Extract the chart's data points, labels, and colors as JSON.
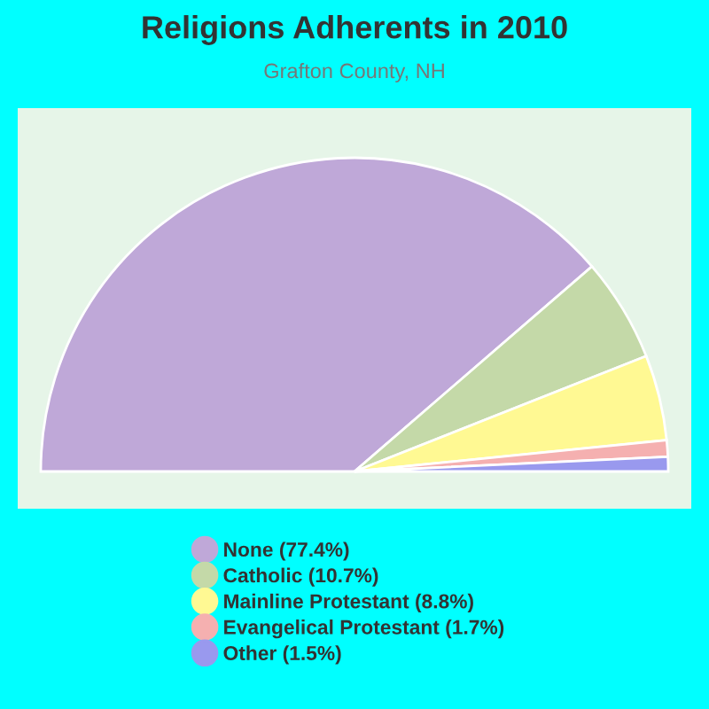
{
  "chart_data": {
    "type": "pie",
    "title": "Religions Adherents in 2010",
    "subtitle": "Grafton County, NH",
    "categories": [
      "None (77.4%)",
      "Catholic (10.7%)",
      "Mainline Protestant (8.8%)",
      "Evangelical Protestant (1.7%)",
      "Other (1.5%)"
    ],
    "values": [
      77.4,
      10.7,
      8.8,
      1.7,
      1.5
    ],
    "colors": [
      "#bfa8d8",
      "#c4d9a8",
      "#fff993",
      "#f5b0b0",
      "#9999ee"
    ],
    "legend": "bottom"
  }
}
